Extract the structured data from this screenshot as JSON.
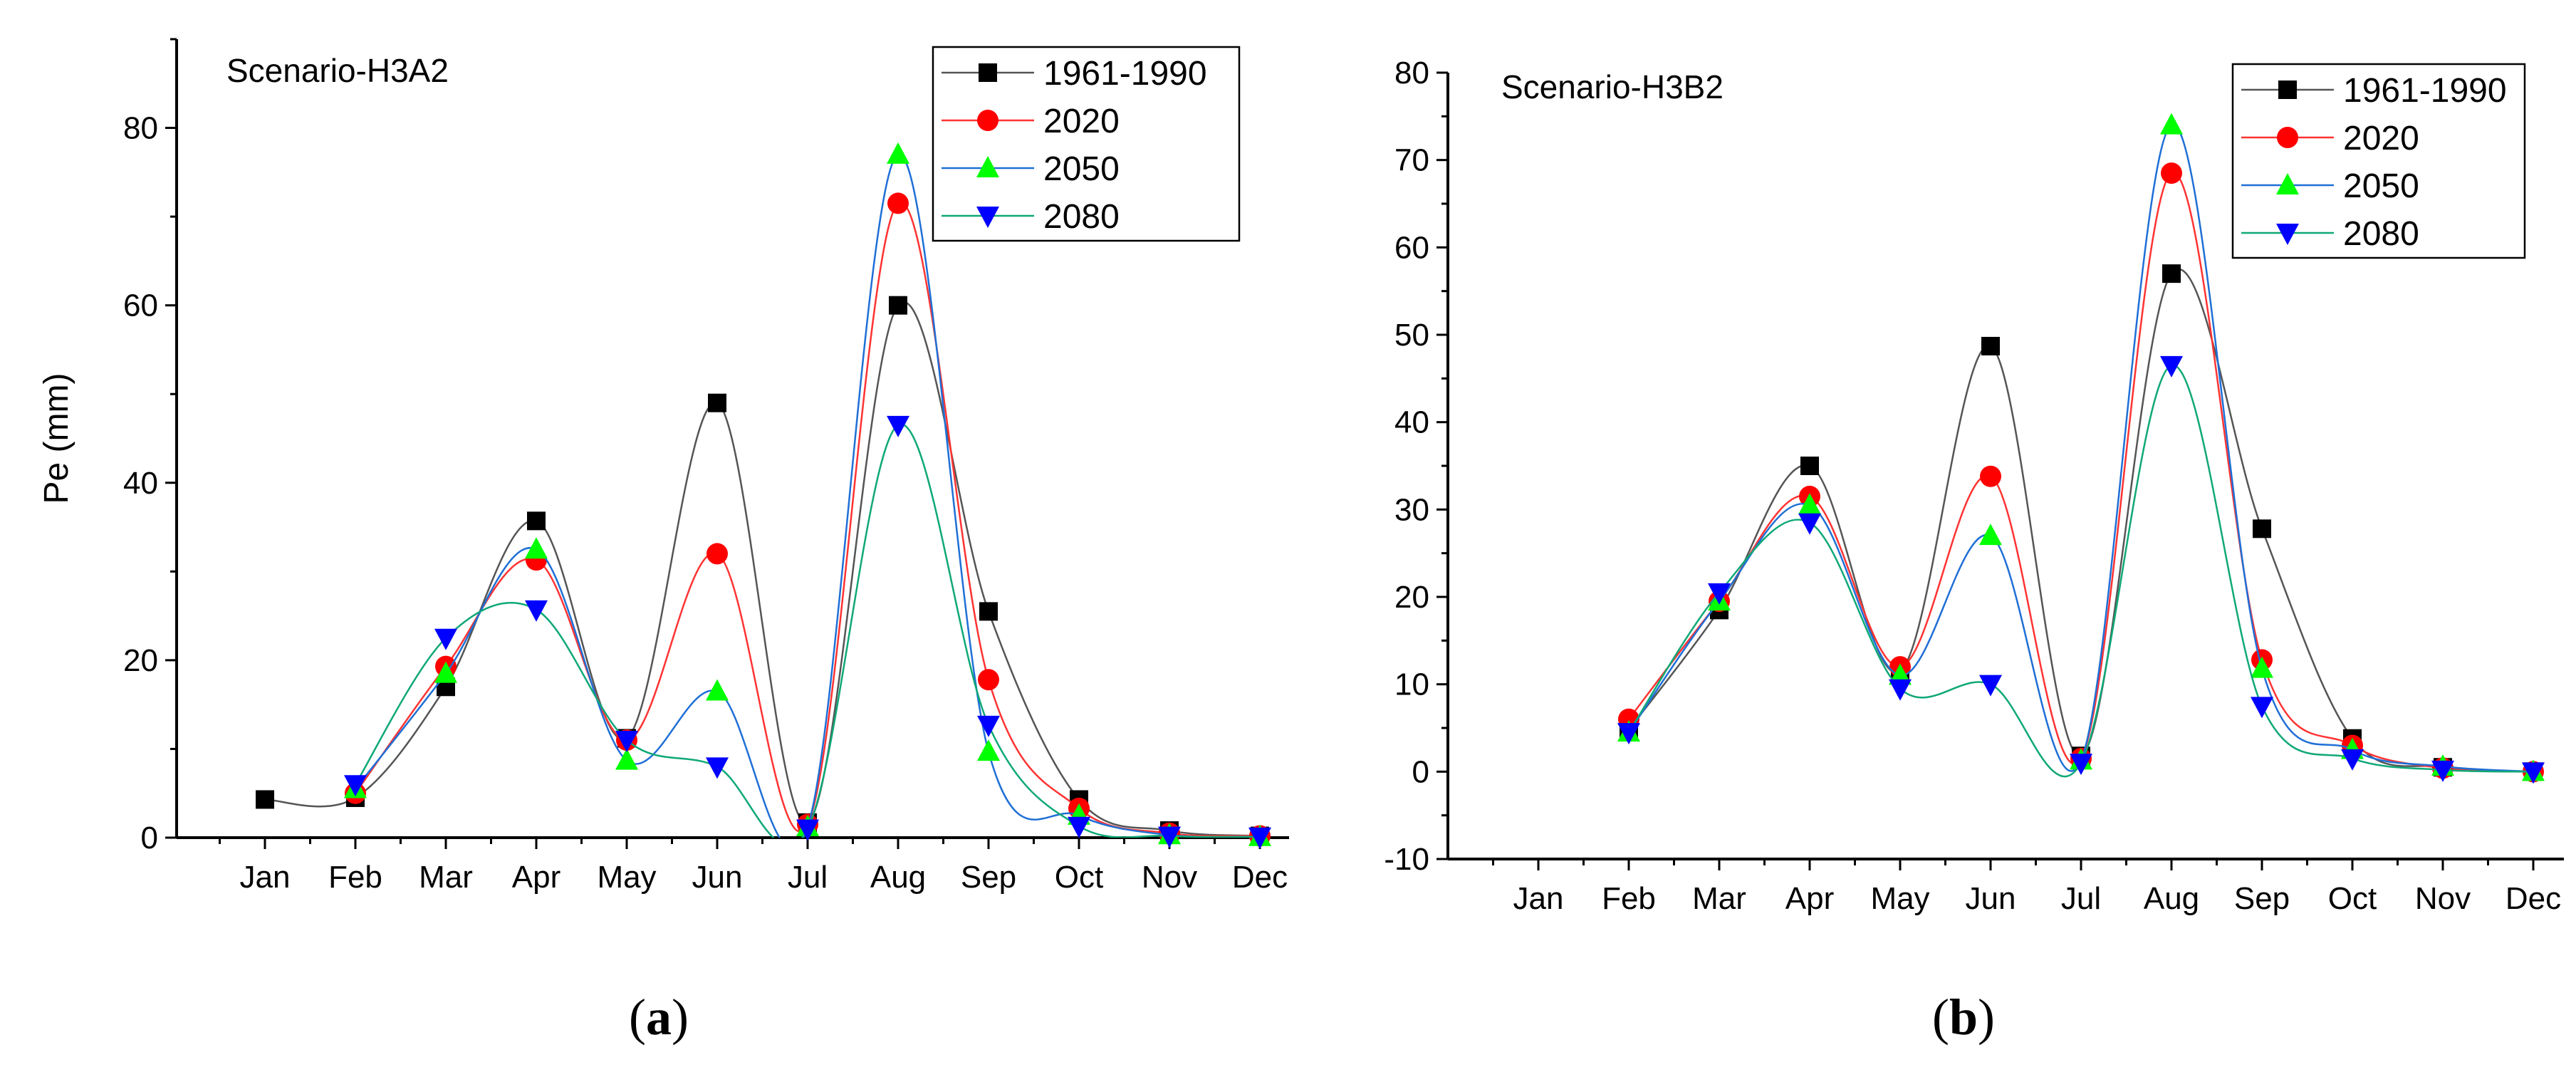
{
  "chart_data": [
    {
      "type": "line",
      "panel": "a",
      "title": "Scenario-H3A2",
      "ylabel": "Pe (mm)",
      "xlabel": "",
      "ylim": [
        0,
        90
      ],
      "yticks": [
        0,
        20,
        40,
        60,
        80
      ],
      "categories": [
        "Jan",
        "Feb",
        "Mar",
        "Apr",
        "May",
        "Jun",
        "Jul",
        "Aug",
        "Sep",
        "Oct",
        "Nov",
        "Dec"
      ],
      "legend_position": "top-right",
      "series": [
        {
          "name": "1961-1990",
          "color": "#555555",
          "marker": "square",
          "marker_color": "#000000",
          "values": [
            4.3,
            4.5,
            17,
            35.7,
            11.2,
            49,
            1.7,
            60,
            25.5,
            4.3,
            0.8,
            0.2
          ]
        },
        {
          "name": "2020",
          "color": "#ff3333",
          "marker": "circle",
          "marker_color": "#ff0000",
          "values": [
            null,
            5,
            19.3,
            31.3,
            11,
            32,
            1.5,
            71.5,
            17.8,
            3.3,
            0.5,
            0.2
          ]
        },
        {
          "name": "2050",
          "color": "#1f6fd6",
          "marker": "triangle-up",
          "marker_color": "#00ff00",
          "values": [
            null,
            5.5,
            18.5,
            32.5,
            8.7,
            16.5,
            1.2,
            77,
            9.7,
            2.5,
            0.3,
            0.1
          ]
        },
        {
          "name": "2080",
          "color": "#0fa878",
          "marker": "triangle-down",
          "marker_color": "#0000ff",
          "values": [
            null,
            6,
            22.5,
            25.7,
            11,
            8,
            1,
            46.5,
            12.7,
            1.3,
            0.2,
            0.1
          ]
        }
      ]
    },
    {
      "type": "line",
      "panel": "b",
      "title": "Scenario-H3B2",
      "ylabel": "",
      "xlabel": "",
      "ylim": [
        -10,
        80
      ],
      "yticks": [
        -10,
        0,
        10,
        20,
        30,
        40,
        50,
        60,
        70,
        80
      ],
      "categories": [
        "Jan",
        "Feb",
        "Mar",
        "Apr",
        "May",
        "Jun",
        "Jul",
        "Aug",
        "Sep",
        "Oct",
        "Nov",
        "Dec"
      ],
      "legend_position": "top-right",
      "series": [
        {
          "name": "1961-1990",
          "color": "#555555",
          "marker": "square",
          "marker_color": "#000000",
          "values": [
            null,
            4.8,
            18.5,
            35,
            11.5,
            48.7,
            1.8,
            57,
            27.8,
            3.8,
            0.5,
            0
          ]
        },
        {
          "name": "2020",
          "color": "#ff3333",
          "marker": "circle",
          "marker_color": "#ff0000",
          "values": [
            null,
            6,
            19.5,
            31.5,
            12,
            33.8,
            1.5,
            68.5,
            12.8,
            3,
            0.4,
            0
          ]
        },
        {
          "name": "2050",
          "color": "#1f6fd6",
          "marker": "triangle-up",
          "marker_color": "#00ff00",
          "values": [
            null,
            4.5,
            19.5,
            30.5,
            11,
            27,
            1.3,
            74,
            11.8,
            2.5,
            0.6,
            0
          ]
        },
        {
          "name": "2080",
          "color": "#0fa878",
          "marker": "triangle-down",
          "marker_color": "#0000ff",
          "values": [
            null,
            4.5,
            20.5,
            28.5,
            9.5,
            10,
            1,
            46.5,
            7.5,
            1.5,
            0.2,
            0
          ]
        }
      ]
    }
  ],
  "panel_labels": [
    "a",
    "b"
  ]
}
